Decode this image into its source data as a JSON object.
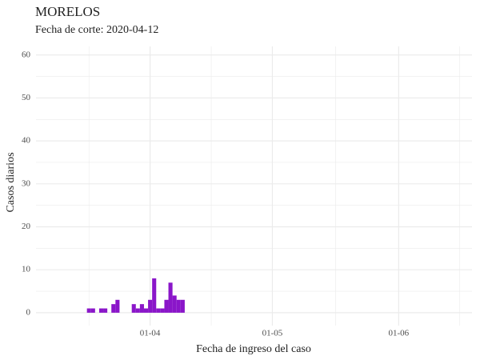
{
  "chart_data": {
    "type": "bar",
    "title": "MORELOS",
    "subtitle": "Fecha de corte: 2020-04-12",
    "x_label": "Fecha de ingreso del caso",
    "y_label": "Casos diarios",
    "x": [
      "17-03",
      "18-03",
      "20-03",
      "21-03",
      "23-03",
      "24-03",
      "28-03",
      "29-03",
      "30-03",
      "31-03",
      "01-04",
      "02-04",
      "03-04",
      "04-04",
      "05-04",
      "06-04",
      "07-04",
      "08-04",
      "09-04"
    ],
    "values": [
      1,
      1,
      1,
      1,
      2,
      3,
      2,
      1,
      2,
      1,
      3,
      8,
      1,
      1,
      3,
      7,
      4,
      3,
      3
    ],
    "color": "#8a16c9",
    "xlim": [
      "04-03",
      "19-06"
    ],
    "xticks": [
      "01-04",
      "01-05",
      "01-06"
    ],
    "ylim": [
      -3,
      62
    ],
    "yticks": [
      0,
      10,
      20,
      30,
      40,
      50,
      60
    ],
    "grid": true
  }
}
